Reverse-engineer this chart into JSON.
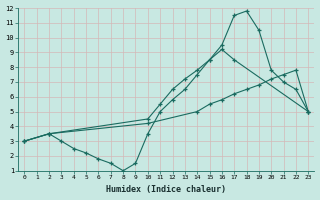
{
  "xlabel": "Humidex (Indice chaleur)",
  "bg_color": "#c8e8e2",
  "grid_color_major": "#c0d8d0",
  "grid_color_minor": "#d4e8e2",
  "line_color": "#1a6b60",
  "xlim": [
    -0.5,
    23.5
  ],
  "ylim": [
    1,
    12
  ],
  "xticks": [
    0,
    1,
    2,
    3,
    4,
    5,
    6,
    7,
    8,
    9,
    10,
    11,
    12,
    13,
    14,
    15,
    16,
    17,
    18,
    19,
    20,
    21,
    22,
    23
  ],
  "yticks": [
    1,
    2,
    3,
    4,
    5,
    6,
    7,
    8,
    9,
    10,
    11,
    12
  ],
  "line1_x": [
    0,
    2,
    3,
    4,
    5,
    6,
    7,
    8,
    9,
    10,
    11,
    12,
    13,
    14,
    15,
    16,
    17,
    23
  ],
  "line1_y": [
    3,
    3.5,
    3.0,
    2.5,
    2.2,
    1.8,
    1.5,
    1.0,
    1.5,
    3.5,
    5.0,
    5.8,
    6.5,
    7.5,
    8.5,
    9.2,
    8.5,
    5.0
  ],
  "line2_x": [
    0,
    2,
    10,
    11,
    12,
    13,
    14,
    15,
    16,
    17,
    18,
    19,
    20,
    21,
    22,
    23
  ],
  "line2_y": [
    3,
    3.5,
    4.5,
    5.5,
    6.5,
    7.2,
    7.8,
    8.5,
    9.5,
    11.5,
    11.8,
    10.5,
    7.8,
    7.0,
    6.5,
    5.0
  ],
  "line3_x": [
    0,
    2,
    10,
    14,
    15,
    16,
    17,
    18,
    19,
    20,
    21,
    22,
    23
  ],
  "line3_y": [
    3,
    3.5,
    4.2,
    5.0,
    5.5,
    5.8,
    6.2,
    6.5,
    6.8,
    7.2,
    7.5,
    7.8,
    5.0
  ]
}
